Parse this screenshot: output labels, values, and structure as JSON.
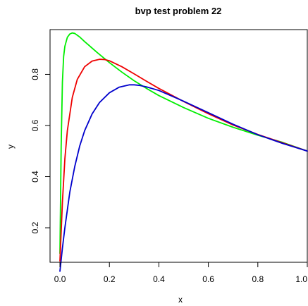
{
  "chart_data": {
    "type": "line",
    "title": "bvp test problem 22",
    "xlabel": "x",
    "ylabel": "y",
    "xlim": [
      -0.04,
      1.0
    ],
    "ylim": [
      0.065,
      0.975
    ],
    "xticks": [
      0.0,
      0.2,
      0.4,
      0.6,
      0.8,
      1.0
    ],
    "xtick_labels": [
      "0.0",
      "0.2",
      "0.4",
      "0.6",
      "0.8",
      "1.0"
    ],
    "yticks": [
      0.2,
      0.4,
      0.6,
      0.8
    ],
    "ytick_labels": [
      "0.2",
      "0.4",
      "0.6",
      "0.8"
    ],
    "grid": false,
    "series": [
      {
        "color": "#00ee00",
        "x": [
          0.0,
          0.005,
          0.01,
          0.015,
          0.02,
          0.03,
          0.04,
          0.05,
          0.06,
          0.08,
          0.1,
          0.15,
          0.2,
          0.25,
          0.3,
          0.35,
          0.4,
          0.5,
          0.6,
          0.7,
          0.8,
          0.9,
          1.0
        ],
        "y": [
          0.1,
          0.52,
          0.77,
          0.87,
          0.91,
          0.945,
          0.958,
          0.962,
          0.96,
          0.946,
          0.928,
          0.886,
          0.846,
          0.809,
          0.775,
          0.745,
          0.717,
          0.67,
          0.628,
          0.593,
          0.562,
          0.534,
          0.5
        ]
      },
      {
        "color": "#ee0000",
        "x": [
          0.0,
          0.01,
          0.02,
          0.03,
          0.05,
          0.07,
          0.1,
          0.13,
          0.16,
          0.18,
          0.2,
          0.25,
          0.3,
          0.35,
          0.4,
          0.5,
          0.6,
          0.7,
          0.8,
          0.9,
          1.0
        ],
        "y": [
          0.07,
          0.3,
          0.47,
          0.58,
          0.71,
          0.78,
          0.83,
          0.852,
          0.859,
          0.858,
          0.853,
          0.83,
          0.802,
          0.773,
          0.745,
          0.694,
          0.646,
          0.602,
          0.565,
          0.532,
          0.5
        ]
      },
      {
        "color": "#0000cc",
        "x": [
          0.0,
          0.01,
          0.02,
          0.04,
          0.06,
          0.08,
          0.1,
          0.13,
          0.16,
          0.2,
          0.24,
          0.28,
          0.3,
          0.32,
          0.35,
          0.4,
          0.5,
          0.6,
          0.7,
          0.8,
          0.9,
          1.0
        ],
        "y": [
          0.03,
          0.12,
          0.2,
          0.34,
          0.44,
          0.52,
          0.58,
          0.645,
          0.69,
          0.728,
          0.75,
          0.759,
          0.759,
          0.757,
          0.751,
          0.737,
          0.695,
          0.65,
          0.605,
          0.564,
          0.53,
          0.5
        ]
      }
    ]
  }
}
